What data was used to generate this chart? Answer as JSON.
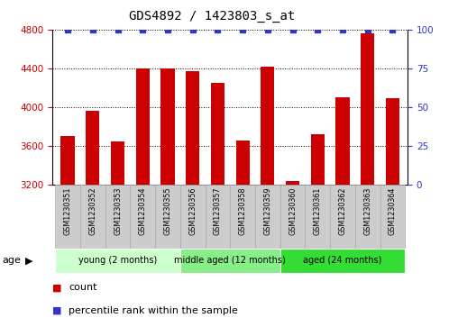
{
  "title": "GDS4892 / 1423803_s_at",
  "samples": [
    "GSM1230351",
    "GSM1230352",
    "GSM1230353",
    "GSM1230354",
    "GSM1230355",
    "GSM1230356",
    "GSM1230357",
    "GSM1230358",
    "GSM1230359",
    "GSM1230360",
    "GSM1230361",
    "GSM1230362",
    "GSM1230363",
    "GSM1230364"
  ],
  "counts": [
    3700,
    3960,
    3645,
    4400,
    4400,
    4370,
    4250,
    3660,
    4420,
    3240,
    3720,
    4100,
    4760,
    4090
  ],
  "percentiles": [
    100,
    100,
    100,
    100,
    100,
    100,
    100,
    100,
    100,
    100,
    100,
    100,
    100,
    100
  ],
  "ylim_left": [
    3200,
    4800
  ],
  "ylim_right": [
    0,
    100
  ],
  "yticks_left": [
    3200,
    3600,
    4000,
    4400,
    4800
  ],
  "yticks_right": [
    0,
    25,
    50,
    75,
    100
  ],
  "bar_color": "#cc0000",
  "percentile_color": "#3333cc",
  "groups": [
    {
      "label": "young (2 months)",
      "start": 0,
      "end": 5,
      "color": "#ccffcc"
    },
    {
      "label": "middle aged (12 months)",
      "start": 5,
      "end": 9,
      "color": "#88ee88"
    },
    {
      "label": "aged (24 months)",
      "start": 9,
      "end": 14,
      "color": "#33dd33"
    }
  ],
  "sample_box_color": "#cccccc",
  "sample_box_edge": "#aaaaaa",
  "title_fontsize": 10,
  "tick_fontsize": 7.5,
  "sample_fontsize": 5.8,
  "group_fontsize": 7,
  "legend_fontsize": 8,
  "age_fontsize": 8
}
